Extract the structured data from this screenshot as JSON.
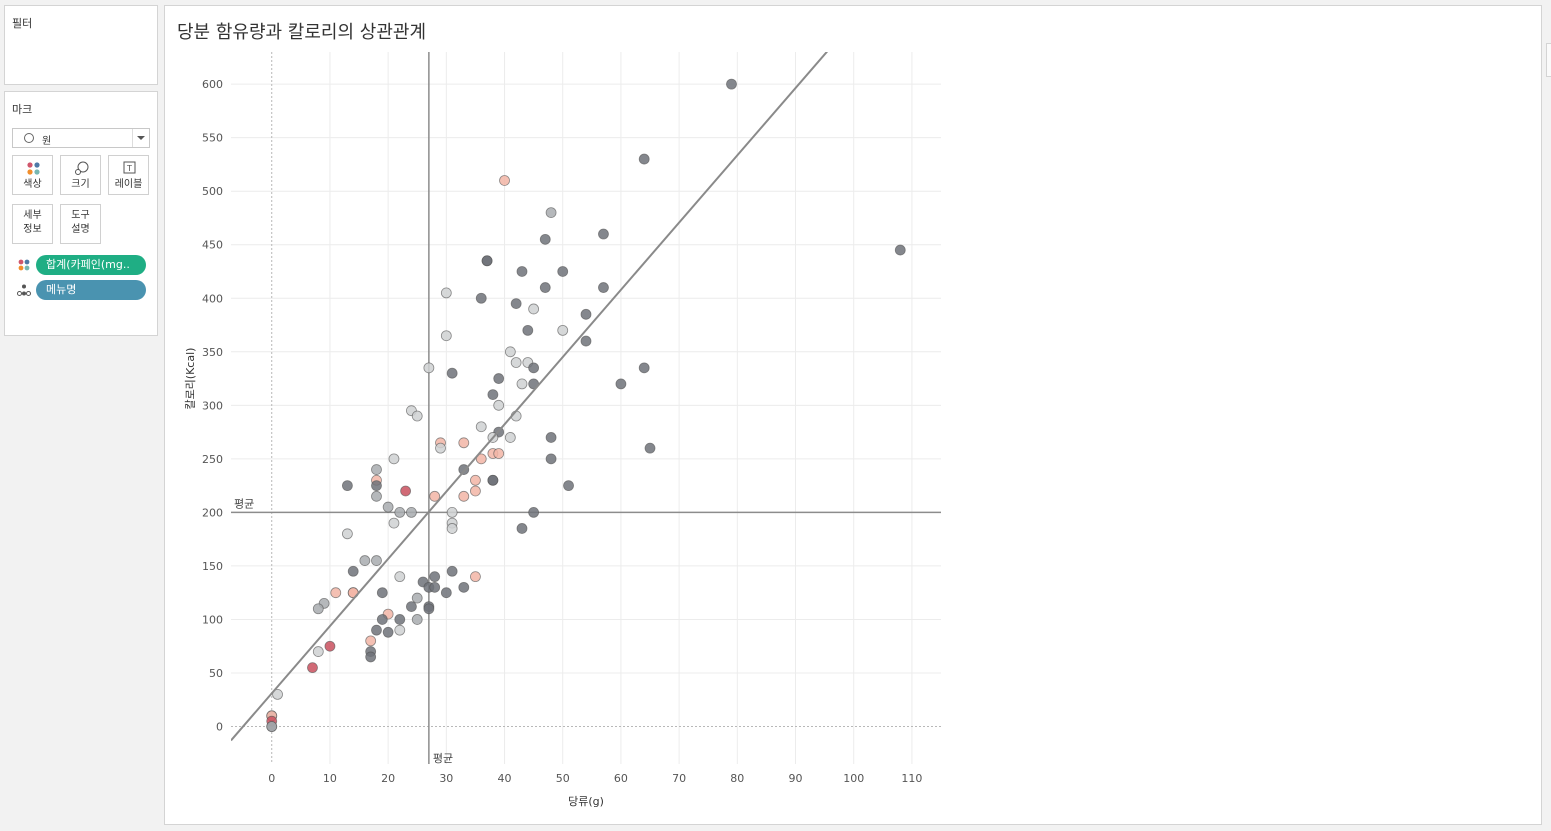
{
  "filters": {
    "title": "필터"
  },
  "marks": {
    "title": "마크",
    "mark_type": "원",
    "buttons": {
      "color": "색상",
      "size": "크기",
      "label": "레이블",
      "detail_1": "세부",
      "detail_2": "정보",
      "tooltip_1": "도구",
      "tooltip_2": "설명"
    },
    "pills": [
      {
        "label": "합계(카페인(mg..",
        "color": "#1fae84"
      },
      {
        "label": "메뉴명",
        "color": "#4a93b0"
      }
    ]
  },
  "chart_data": {
    "type": "scatter",
    "title": "당분 함유량과 칼로리의 상관관계",
    "xlabel": "당류(g)",
    "ylabel": "칼로리(Kcal)",
    "xlim": [
      -7,
      115
    ],
    "ylim": [
      -35,
      630
    ],
    "xticks": [
      0,
      10,
      20,
      30,
      40,
      50,
      60,
      70,
      80,
      90,
      100,
      110
    ],
    "yticks": [
      0,
      50,
      100,
      150,
      200,
      250,
      300,
      350,
      400,
      450,
      500,
      550,
      600
    ],
    "grid": true,
    "reference_lines": [
      {
        "axis": "x",
        "value": 27,
        "label": "평균"
      },
      {
        "axis": "y",
        "value": 200,
        "label": "평균"
      }
    ],
    "trend_line": {
      "from": [
        -7,
        -13
      ],
      "to": [
        96,
        634
      ]
    },
    "colors": {
      "dark": "#6e7279",
      "mid": "#a8acaf",
      "light": "#cfd1d2",
      "peach": "#f2b5a6",
      "red": "#c9505e"
    },
    "points": [
      [
        79,
        600,
        "dark"
      ],
      [
        64,
        530,
        "dark"
      ],
      [
        108,
        445,
        "dark"
      ],
      [
        40,
        510,
        "peach"
      ],
      [
        48,
        480,
        "mid"
      ],
      [
        57,
        460,
        "dark"
      ],
      [
        47,
        455,
        "dark"
      ],
      [
        37,
        435,
        "dark"
      ],
      [
        37,
        435,
        "dark"
      ],
      [
        43,
        425,
        "dark"
      ],
      [
        50,
        425,
        "dark"
      ],
      [
        47,
        410,
        "dark"
      ],
      [
        57,
        410,
        "dark"
      ],
      [
        30,
        405,
        "light"
      ],
      [
        36,
        400,
        "dark"
      ],
      [
        42,
        395,
        "dark"
      ],
      [
        45,
        390,
        "light"
      ],
      [
        54,
        385,
        "dark"
      ],
      [
        44,
        370,
        "dark"
      ],
      [
        50,
        370,
        "light"
      ],
      [
        30,
        365,
        "light"
      ],
      [
        54,
        360,
        "dark"
      ],
      [
        41,
        350,
        "light"
      ],
      [
        42,
        340,
        "light"
      ],
      [
        44,
        340,
        "light"
      ],
      [
        45,
        335,
        "dark"
      ],
      [
        64,
        335,
        "dark"
      ],
      [
        27,
        335,
        "light"
      ],
      [
        31,
        330,
        "dark"
      ],
      [
        39,
        325,
        "dark"
      ],
      [
        43,
        320,
        "light"
      ],
      [
        45,
        320,
        "dark"
      ],
      [
        60,
        320,
        "dark"
      ],
      [
        38,
        310,
        "dark"
      ],
      [
        39,
        300,
        "light"
      ],
      [
        24,
        295,
        "light"
      ],
      [
        25,
        290,
        "light"
      ],
      [
        42,
        290,
        "light"
      ],
      [
        36,
        280,
        "light"
      ],
      [
        39,
        275,
        "dark"
      ],
      [
        38,
        270,
        "light"
      ],
      [
        41,
        270,
        "light"
      ],
      [
        48,
        270,
        "dark"
      ],
      [
        29,
        265,
        "peach"
      ],
      [
        33,
        265,
        "peach"
      ],
      [
        29,
        260,
        "light"
      ],
      [
        65,
        260,
        "dark"
      ],
      [
        38,
        255,
        "peach"
      ],
      [
        39,
        255,
        "peach"
      ],
      [
        36,
        250,
        "peach"
      ],
      [
        21,
        250,
        "light"
      ],
      [
        48,
        250,
        "dark"
      ],
      [
        18,
        240,
        "mid"
      ],
      [
        33,
        240,
        "dark"
      ],
      [
        35,
        230,
        "peach"
      ],
      [
        38,
        230,
        "dark"
      ],
      [
        38,
        230,
        "dark"
      ],
      [
        18,
        230,
        "peach"
      ],
      [
        13,
        225,
        "dark"
      ],
      [
        18,
        225,
        "dark"
      ],
      [
        51,
        225,
        "dark"
      ],
      [
        23,
        220,
        "red"
      ],
      [
        35,
        220,
        "peach"
      ],
      [
        28,
        215,
        "peach"
      ],
      [
        33,
        215,
        "peach"
      ],
      [
        18,
        215,
        "mid"
      ],
      [
        20,
        205,
        "mid"
      ],
      [
        22,
        200,
        "mid"
      ],
      [
        24,
        200,
        "mid"
      ],
      [
        31,
        200,
        "light"
      ],
      [
        45,
        200,
        "dark"
      ],
      [
        21,
        190,
        "light"
      ],
      [
        31,
        190,
        "light"
      ],
      [
        31,
        185,
        "light"
      ],
      [
        43,
        185,
        "dark"
      ],
      [
        13,
        180,
        "light"
      ],
      [
        16,
        155,
        "mid"
      ],
      [
        18,
        155,
        "mid"
      ],
      [
        14,
        145,
        "dark"
      ],
      [
        31,
        145,
        "dark"
      ],
      [
        22,
        140,
        "light"
      ],
      [
        28,
        140,
        "dark"
      ],
      [
        35,
        140,
        "peach"
      ],
      [
        26,
        135,
        "dark"
      ],
      [
        27,
        130,
        "dark"
      ],
      [
        28,
        130,
        "dark"
      ],
      [
        33,
        130,
        "dark"
      ],
      [
        11,
        125,
        "peach"
      ],
      [
        14,
        125,
        "peach"
      ],
      [
        14,
        125,
        "peach"
      ],
      [
        19,
        125,
        "dark"
      ],
      [
        30,
        125,
        "dark"
      ],
      [
        25,
        120,
        "mid"
      ],
      [
        9,
        115,
        "mid"
      ],
      [
        24,
        112,
        "dark"
      ],
      [
        27,
        112,
        "dark"
      ],
      [
        8,
        110,
        "mid"
      ],
      [
        27,
        110,
        "dark"
      ],
      [
        20,
        105,
        "peach"
      ],
      [
        19,
        100,
        "dark"
      ],
      [
        22,
        100,
        "dark"
      ],
      [
        25,
        100,
        "mid"
      ],
      [
        18,
        90,
        "dark"
      ],
      [
        20,
        88,
        "dark"
      ],
      [
        22,
        90,
        "light"
      ],
      [
        17,
        80,
        "peach"
      ],
      [
        10,
        75,
        "red"
      ],
      [
        8,
        70,
        "light"
      ],
      [
        17,
        70,
        "dark"
      ],
      [
        17,
        65,
        "dark"
      ],
      [
        7,
        55,
        "red"
      ],
      [
        1,
        30,
        "light"
      ],
      [
        0,
        10,
        "mid"
      ],
      [
        0,
        10,
        "peach"
      ],
      [
        0,
        5,
        "red"
      ],
      [
        0,
        0,
        "dark"
      ],
      [
        0,
        0,
        "mid"
      ]
    ]
  }
}
